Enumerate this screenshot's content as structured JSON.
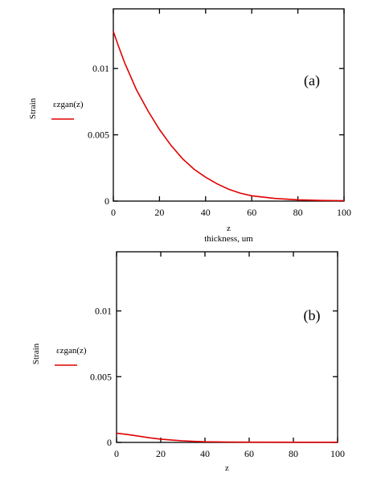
{
  "chart_data": [
    {
      "type": "line",
      "panel_label": "(a)",
      "ylabel": "Strain",
      "xlabel": "z",
      "xlabel2": "thickness, um",
      "xlim": [
        0,
        100
      ],
      "ylim": [
        0,
        0.0145
      ],
      "xticks": [
        "0",
        "20",
        "40",
        "60",
        "80",
        "100"
      ],
      "yticks": [
        "0",
        "0.005",
        "0.01"
      ],
      "series": [
        {
          "name": "εzgan(z)",
          "color": "#e00000",
          "x": [
            0,
            2,
            5,
            10,
            15,
            20,
            25,
            30,
            35,
            40,
            45,
            50,
            55,
            60,
            70,
            80,
            90,
            100
          ],
          "y": [
            0.0128,
            0.0118,
            0.0104,
            0.0084,
            0.0068,
            0.0054,
            0.0042,
            0.0032,
            0.0024,
            0.0018,
            0.0013,
            0.0009,
            0.0006,
            0.0004,
            0.0002,
            0.0001,
            5e-05,
            3e-05
          ]
        }
      ]
    },
    {
      "type": "line",
      "panel_label": "(b)",
      "ylabel": "Strain",
      "xlabel": "z",
      "xlim": [
        0,
        100
      ],
      "ylim": [
        0,
        0.0145
      ],
      "xticks": [
        "0",
        "20",
        "40",
        "60",
        "80",
        "100"
      ],
      "yticks": [
        "0",
        "0.005",
        "0.01"
      ],
      "series": [
        {
          "name": "εzgan(z)",
          "color": "#e00000",
          "x": [
            0,
            5,
            10,
            15,
            20,
            25,
            30,
            35,
            40,
            50,
            60,
            80,
            100
          ],
          "y": [
            0.0007,
            0.0006,
            0.00048,
            0.00035,
            0.00025,
            0.00018,
            0.00012,
            8e-05,
            5e-05,
            3e-05,
            2e-05,
            1e-05,
            1e-05
          ]
        }
      ]
    }
  ]
}
